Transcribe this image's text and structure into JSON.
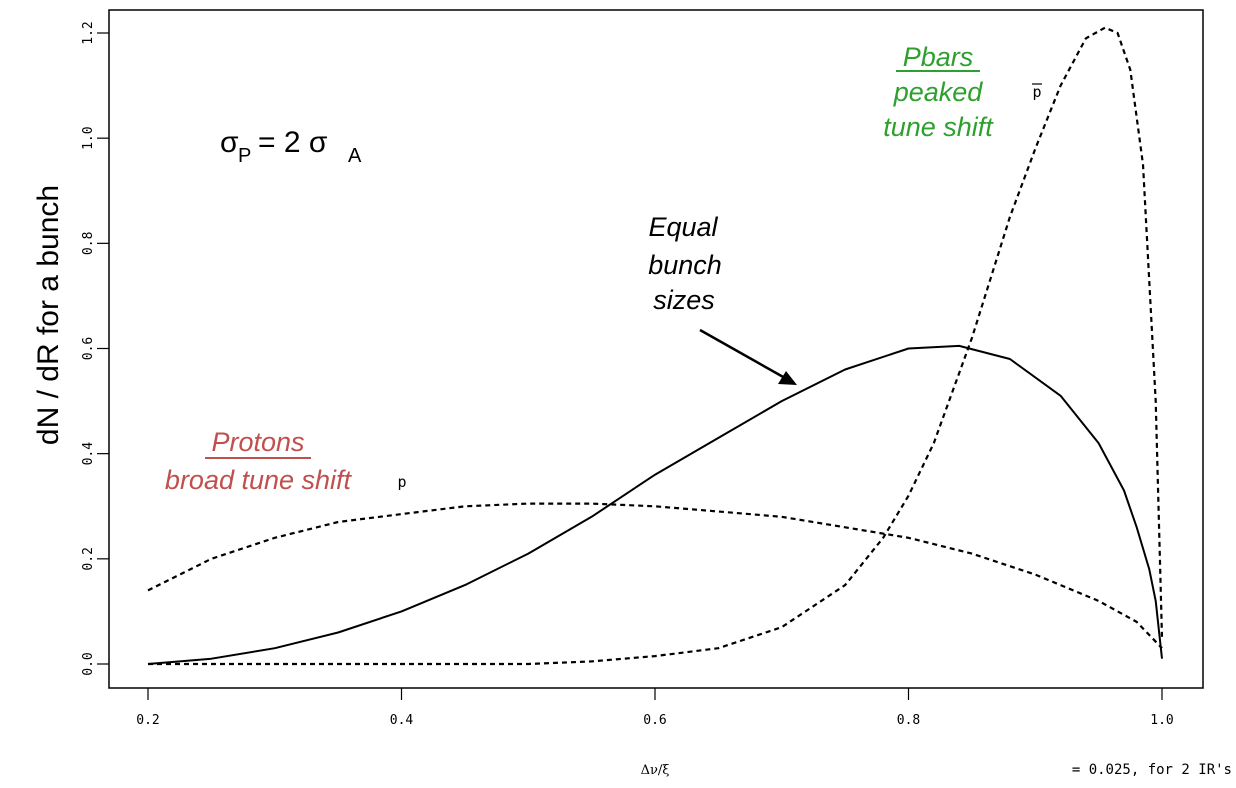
{
  "chart_data": {
    "type": "line",
    "title": "",
    "xlabel": "Δν/ξ",
    "ylabel": "dN / dR for a bunch",
    "xlim": [
      0.2,
      1.0
    ],
    "ylim": [
      0.0,
      1.2
    ],
    "x_ticks": [
      "0.2",
      "0.4",
      "0.6",
      "0.8",
      "1.0"
    ],
    "y_ticks": [
      "0.0",
      "0.2",
      "0.4",
      "0.6",
      "0.8",
      "1.0",
      "1.2"
    ],
    "x_note": "= 0.025, for 2 IR's",
    "series": [
      {
        "name": "",
        "style": "solid",
        "x": [
          0.2,
          0.25,
          0.3,
          0.35,
          0.4,
          0.45,
          0.5,
          0.55,
          0.6,
          0.65,
          0.7,
          0.75,
          0.8,
          0.84,
          0.88,
          0.92,
          0.95,
          0.97,
          0.98,
          0.99,
          0.995,
          1.0
        ],
        "y": [
          0.0,
          0.01,
          0.03,
          0.06,
          0.1,
          0.15,
          0.21,
          0.28,
          0.36,
          0.43,
          0.5,
          0.56,
          0.6,
          0.605,
          0.58,
          0.51,
          0.42,
          0.33,
          0.26,
          0.18,
          0.12,
          0.01
        ]
      },
      {
        "name": "",
        "style": "dashed",
        "x": [
          0.2,
          0.25,
          0.3,
          0.35,
          0.4,
          0.45,
          0.5,
          0.55,
          0.6,
          0.65,
          0.7,
          0.75,
          0.8,
          0.85,
          0.9,
          0.95,
          0.98,
          1.0
        ],
        "y": [
          0.14,
          0.2,
          0.24,
          0.27,
          0.285,
          0.3,
          0.305,
          0.305,
          0.3,
          0.29,
          0.28,
          0.26,
          0.24,
          0.21,
          0.17,
          0.12,
          0.08,
          0.03
        ]
      },
      {
        "name": "",
        "style": "dashed",
        "x": [
          0.2,
          0.3,
          0.4,
          0.5,
          0.55,
          0.6,
          0.65,
          0.7,
          0.75,
          0.78,
          0.8,
          0.82,
          0.85,
          0.88,
          0.9,
          0.92,
          0.94,
          0.955,
          0.965,
          0.975,
          0.985,
          0.995,
          1.0
        ],
        "y": [
          0.0,
          0.0,
          0.0,
          0.0,
          0.005,
          0.015,
          0.03,
          0.07,
          0.15,
          0.24,
          0.32,
          0.42,
          0.62,
          0.85,
          0.98,
          1.1,
          1.19,
          1.21,
          1.2,
          1.13,
          0.95,
          0.5,
          0.05
        ]
      }
    ],
    "annotations": {
      "sigma_main": "σ",
      "sigma_sub_p": "P",
      "sigma_eq": "= 2 σ",
      "sigma_sub_a": "A",
      "equal_line1": "Equal",
      "equal_line2": "bunch",
      "equal_line3": "sizes",
      "pbars_title": "Pbars",
      "pbars_line2": "peaked",
      "pbars_line3": "tune shift",
      "protons_title": "Protons",
      "protons_line2": "broad tune shift",
      "label_p": "p",
      "label_pbar": "p"
    },
    "colors": {
      "pbars": "#2ea02e",
      "protons": "#c0504d",
      "line": "#000000"
    }
  }
}
